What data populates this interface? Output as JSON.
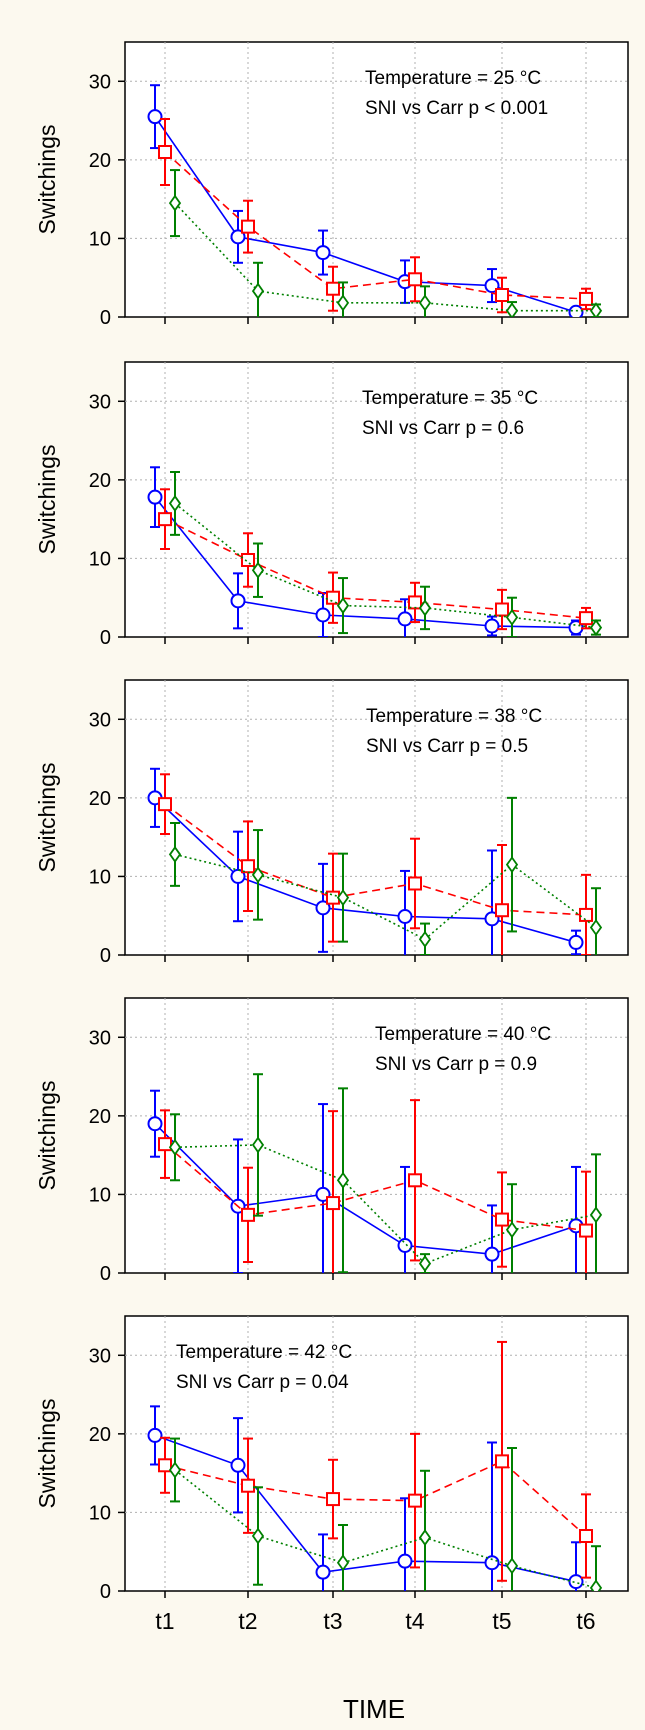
{
  "chart_data": [
    {
      "type": "line",
      "xlabel": "TIME",
      "ylabel": "Switchings",
      "ylim": [
        0,
        35
      ],
      "yticks": [
        0,
        10,
        20,
        30
      ],
      "categories": [
        "t1",
        "t2",
        "t3",
        "t4",
        "t5",
        "t6"
      ],
      "annotation": [
        "Temperature = 25 °C",
        "SNI vs Carr p < 0.001"
      ],
      "grid": true,
      "series": [
        {
          "color": "#0000ff",
          "marker": "circle",
          "line": "solid",
          "values": [
            25.5,
            10.2,
            8.2,
            4.5,
            4.0,
            0.6
          ],
          "err": [
            4.0,
            3.3,
            2.8,
            2.7,
            2.1,
            0.5
          ]
        },
        {
          "color": "#ff0000",
          "marker": "square",
          "line": "dashed",
          "values": [
            21.0,
            11.5,
            3.6,
            4.8,
            2.8,
            2.3
          ],
          "err": [
            4.2,
            3.3,
            2.8,
            2.8,
            2.2,
            1.3
          ]
        },
        {
          "color": "#008000",
          "marker": "diamond",
          "line": "dotted",
          "values": [
            14.5,
            3.3,
            1.8,
            1.8,
            0.8,
            0.8
          ],
          "err": [
            4.2,
            3.6,
            2.6,
            2.1,
            1.1,
            0.8
          ]
        }
      ]
    },
    {
      "type": "line",
      "xlabel": "TIME",
      "ylabel": "Switchings",
      "ylim": [
        0,
        35
      ],
      "yticks": [
        0,
        10,
        20,
        30
      ],
      "categories": [
        "t1",
        "t2",
        "t3",
        "t4",
        "t5",
        "t6"
      ],
      "annotation": [
        "Temperature = 35 °C",
        "SNI vs Carr p = 0.6"
      ],
      "grid": true,
      "series": [
        {
          "color": "#0000ff",
          "marker": "circle",
          "line": "solid",
          "values": [
            17.8,
            4.6,
            2.8,
            2.3,
            1.4,
            1.2
          ],
          "err": [
            3.8,
            3.5,
            2.8,
            2.5,
            1.2,
            0.9
          ]
        },
        {
          "color": "#ff0000",
          "marker": "square",
          "line": "dashed",
          "values": [
            15.0,
            9.8,
            5.0,
            4.4,
            3.5,
            2.4
          ],
          "err": [
            3.8,
            3.4,
            3.2,
            2.5,
            2.5,
            1.3
          ]
        },
        {
          "color": "#008000",
          "marker": "diamond",
          "line": "dotted",
          "values": [
            17.0,
            8.5,
            4.0,
            3.7,
            2.5,
            1.2
          ],
          "err": [
            4.0,
            3.4,
            3.5,
            2.7,
            2.5,
            0.9
          ]
        }
      ]
    },
    {
      "type": "line",
      "xlabel": "TIME",
      "ylabel": "Switchings",
      "ylim": [
        0,
        35
      ],
      "yticks": [
        0,
        10,
        20,
        30
      ],
      "categories": [
        "t1",
        "t2",
        "t3",
        "t4",
        "t5",
        "t6"
      ],
      "annotation": [
        "Temperature = 38 °C",
        "SNI vs Carr p = 0.5"
      ],
      "grid": true,
      "series": [
        {
          "color": "#0000ff",
          "marker": "circle",
          "line": "solid",
          "values": [
            20.0,
            10.0,
            6.0,
            4.9,
            4.6,
            1.6
          ],
          "err": [
            3.7,
            5.7,
            5.6,
            5.8,
            8.7,
            1.5
          ]
        },
        {
          "color": "#ff0000",
          "marker": "square",
          "line": "dashed",
          "values": [
            19.2,
            11.3,
            7.3,
            9.1,
            5.7,
            5.1
          ],
          "err": [
            3.8,
            5.7,
            5.6,
            5.7,
            8.3,
            5.1
          ]
        },
        {
          "color": "#008000",
          "marker": "diamond",
          "line": "dotted",
          "values": [
            12.8,
            10.2,
            7.3,
            2.0,
            11.5,
            3.5
          ],
          "err": [
            4.0,
            5.7,
            5.6,
            2.0,
            8.5,
            5.0
          ]
        }
      ]
    },
    {
      "type": "line",
      "xlabel": "TIME",
      "ylabel": "Switchings",
      "ylim": [
        0,
        35
      ],
      "yticks": [
        0,
        10,
        20,
        30
      ],
      "categories": [
        "t1",
        "t2",
        "t3",
        "t4",
        "t5",
        "t6"
      ],
      "annotation": [
        "Temperature = 40 °C",
        "SNI vs Carr p = 0.9"
      ],
      "grid": true,
      "series": [
        {
          "color": "#0000ff",
          "marker": "circle",
          "line": "solid",
          "values": [
            19.0,
            8.5,
            10.0,
            3.5,
            2.4,
            6.0
          ],
          "err": [
            4.2,
            8.5,
            11.5,
            10.0,
            6.2,
            7.5
          ]
        },
        {
          "color": "#ff0000",
          "marker": "square",
          "line": "dashed",
          "values": [
            16.4,
            7.4,
            8.9,
            11.8,
            6.8,
            5.4
          ],
          "err": [
            4.3,
            6.0,
            11.7,
            10.2,
            6.0,
            7.5
          ]
        },
        {
          "color": "#008000",
          "marker": "diamond",
          "line": "dotted",
          "values": [
            16.0,
            16.3,
            11.8,
            1.2,
            5.5,
            7.4
          ],
          "err": [
            4.2,
            9.0,
            11.7,
            1.2,
            5.8,
            7.7
          ]
        }
      ]
    },
    {
      "type": "line",
      "xlabel": "TIME",
      "ylabel": "Switchings",
      "ylim": [
        0,
        35
      ],
      "yticks": [
        0,
        10,
        20,
        30
      ],
      "categories": [
        "t1",
        "t2",
        "t3",
        "t4",
        "t5",
        "t6"
      ],
      "annotation": [
        "Temperature = 42 °C",
        "SNI vs Carr p = 0.04"
      ],
      "grid": true,
      "series": [
        {
          "color": "#0000ff",
          "marker": "circle",
          "line": "solid",
          "values": [
            19.8,
            16.0,
            2.4,
            3.8,
            3.6,
            1.2
          ],
          "err": [
            3.7,
            6.0,
            4.8,
            8.0,
            15.3,
            5.0
          ]
        },
        {
          "color": "#ff0000",
          "marker": "square",
          "line": "dashed",
          "values": [
            16.0,
            13.4,
            11.7,
            11.5,
            16.5,
            7.0
          ],
          "err": [
            3.5,
            6.0,
            5.0,
            8.5,
            15.2,
            5.3
          ]
        },
        {
          "color": "#008000",
          "marker": "diamond",
          "line": "dotted",
          "values": [
            15.4,
            7.0,
            3.6,
            6.8,
            3.2,
            0.4
          ],
          "err": [
            4.0,
            6.2,
            4.8,
            8.5,
            15.0,
            5.3
          ]
        }
      ]
    }
  ]
}
